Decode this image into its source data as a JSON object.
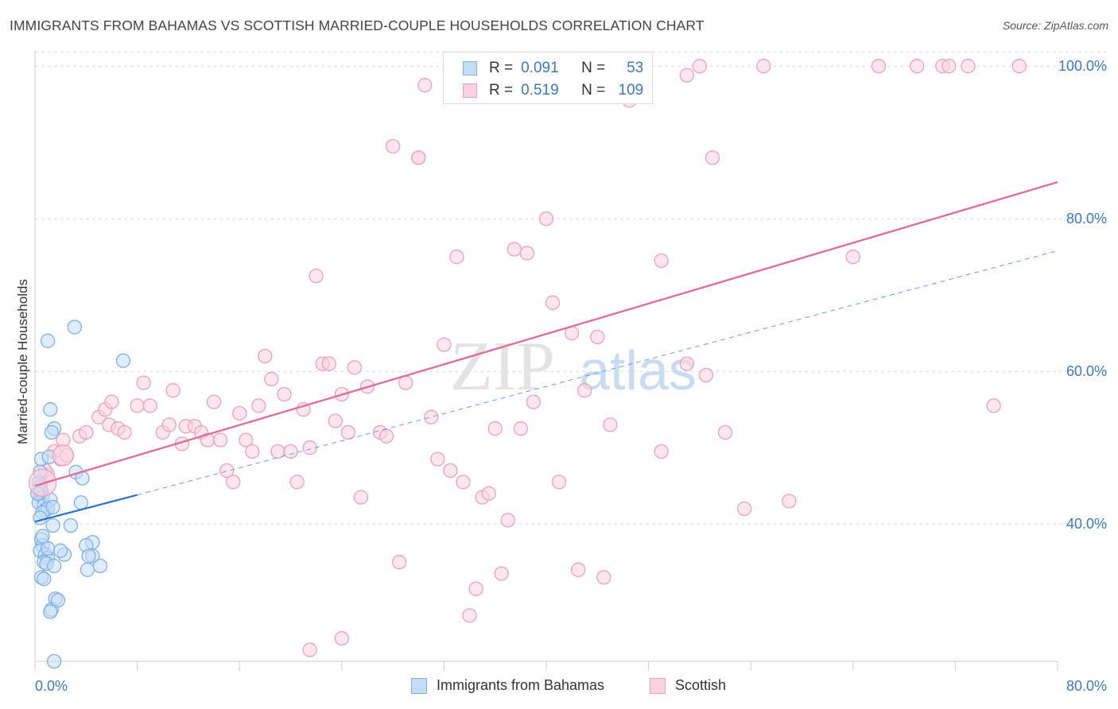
{
  "title": "IMMIGRANTS FROM BAHAMAS VS SCOTTISH MARRIED-COUPLE HOUSEHOLDS CORRELATION CHART",
  "source": "Source: ZipAtlas.com",
  "watermark": {
    "zip": "ZIP",
    "atlas": "atlas"
  },
  "legend": {
    "r_label": "R =",
    "n_label": "N =",
    "rows": [
      {
        "r": "0.091",
        "n": "53",
        "color": "#7fb0e8",
        "fill": "#c5dcf5"
      },
      {
        "r": "0.519",
        "n": "109",
        "color": "#f0a0b8",
        "fill": "#fbd3df"
      }
    ]
  },
  "bottom_legend": [
    {
      "label": "Immigrants from Bahamas",
      "color": "#7fb0e8",
      "fill": "#c5dcf5"
    },
    {
      "label": "Scottish",
      "color": "#f0a0b8",
      "fill": "#fbd3df"
    }
  ],
  "chart_data": {
    "type": "scatter",
    "title": "IMMIGRANTS FROM BAHAMAS VS SCOTTISH MARRIED-COUPLE HOUSEHOLDS CORRELATION CHART",
    "xlabel": "",
    "ylabel": "Married-couple Households",
    "xlim": [
      0,
      80
    ],
    "ylim": [
      22,
      102
    ],
    "x_tick_labels": [
      "0.0%",
      "80.0%"
    ],
    "y_ticks": [
      40,
      60,
      80,
      100
    ],
    "y_tick_labels": [
      "40.0%",
      "60.0%",
      "80.0%",
      "100.0%"
    ],
    "grid": "dashed horizontal",
    "legend_position": "top-center",
    "series": [
      {
        "name": "Immigrants from Bahamas",
        "color": "#7fb0e8",
        "fill": "#c5dcf5",
        "line_color": "#2a6fd0",
        "trend": {
          "x0": 0,
          "y0": 40.3,
          "x1": 8,
          "y1": 43.8,
          "dash_to_x": 80,
          "dash_to_y": 75.8
        },
        "points": [
          [
            0.3,
            45.4
          ],
          [
            0.4,
            44.8
          ],
          [
            0.4,
            43.8
          ],
          [
            0.5,
            44.2
          ],
          [
            0.6,
            43.5
          ],
          [
            0.3,
            42.8
          ],
          [
            0.7,
            42.4
          ],
          [
            0.8,
            41.8
          ],
          [
            0.5,
            48.5
          ],
          [
            0.4,
            46.8
          ],
          [
            1.1,
            48.8
          ],
          [
            1.2,
            43.2
          ],
          [
            1.0,
            42.0
          ],
          [
            0.6,
            41.5
          ],
          [
            0.4,
            40.8
          ],
          [
            0.5,
            38.0
          ],
          [
            0.6,
            37.2
          ],
          [
            0.4,
            36.5
          ],
          [
            0.8,
            36.0
          ],
          [
            1.0,
            35.5
          ],
          [
            0.7,
            35.0
          ],
          [
            0.9,
            34.8
          ],
          [
            1.5,
            34.5
          ],
          [
            0.5,
            33.0
          ],
          [
            0.7,
            32.8
          ],
          [
            1.6,
            30.2
          ],
          [
            1.3,
            28.8
          ],
          [
            1.2,
            28.5
          ],
          [
            1.5,
            22.0
          ],
          [
            1.0,
            36.8
          ],
          [
            1.4,
            39.8
          ],
          [
            0.6,
            38.4
          ],
          [
            1.5,
            52.5
          ],
          [
            1.2,
            55.0
          ],
          [
            1.0,
            64.0
          ],
          [
            3.1,
            65.8
          ],
          [
            1.3,
            52.0
          ],
          [
            2.8,
            39.8
          ],
          [
            2.3,
            36.0
          ],
          [
            3.2,
            46.8
          ],
          [
            3.7,
            46.0
          ],
          [
            4.5,
            37.6
          ],
          [
            4.0,
            37.2
          ],
          [
            4.5,
            35.8
          ],
          [
            4.2,
            35.8
          ],
          [
            5.1,
            34.5
          ],
          [
            4.1,
            34.0
          ],
          [
            1.8,
            30.0
          ],
          [
            6.9,
            61.4
          ],
          [
            3.6,
            42.8
          ],
          [
            2.0,
            36.5
          ],
          [
            0.2,
            44.0
          ],
          [
            1.4,
            42.2
          ]
        ]
      },
      {
        "name": "Scottish",
        "color": "#f0a0b8",
        "fill": "#fbd3df",
        "line_color": "#e0709a",
        "trend": {
          "x0": 0,
          "y0": 45.0,
          "x1": 80,
          "y1": 84.8
        },
        "points": [
          [
            0.5,
            45.5
          ],
          [
            1.0,
            46.5
          ],
          [
            2.0,
            48.5
          ],
          [
            2.5,
            49.0
          ],
          [
            3.5,
            51.5
          ],
          [
            4.0,
            52.0
          ],
          [
            5.0,
            54.0
          ],
          [
            5.5,
            55.0
          ],
          [
            6.0,
            56.0
          ],
          [
            5.8,
            53.0
          ],
          [
            6.5,
            52.5
          ],
          [
            7.0,
            52.0
          ],
          [
            8.0,
            55.5
          ],
          [
            8.5,
            58.5
          ],
          [
            9.0,
            55.5
          ],
          [
            10.0,
            52.0
          ],
          [
            10.5,
            53.0
          ],
          [
            10.8,
            57.5
          ],
          [
            11.5,
            50.5
          ],
          [
            11.8,
            52.8
          ],
          [
            12.5,
            52.8
          ],
          [
            13.0,
            52.0
          ],
          [
            13.5,
            51.0
          ],
          [
            14.0,
            56.0
          ],
          [
            14.5,
            51.0
          ],
          [
            15.0,
            47.0
          ],
          [
            15.5,
            45.5
          ],
          [
            16.0,
            54.5
          ],
          [
            16.5,
            51.0
          ],
          [
            17.0,
            49.5
          ],
          [
            17.5,
            55.5
          ],
          [
            18.0,
            62.0
          ],
          [
            18.5,
            59.0
          ],
          [
            19.0,
            49.5
          ],
          [
            19.5,
            57.0
          ],
          [
            20.0,
            49.5
          ],
          [
            20.5,
            45.5
          ],
          [
            21.0,
            55.0
          ],
          [
            21.5,
            50.0
          ],
          [
            22.0,
            72.5
          ],
          [
            22.5,
            61.0
          ],
          [
            23.0,
            61.0
          ],
          [
            23.5,
            53.5
          ],
          [
            24.0,
            57.0
          ],
          [
            24.5,
            52.0
          ],
          [
            25.0,
            60.5
          ],
          [
            25.5,
            43.5
          ],
          [
            26.0,
            58.0
          ],
          [
            27.0,
            52.0
          ],
          [
            27.5,
            51.5
          ],
          [
            28.0,
            89.5
          ],
          [
            28.5,
            35.0
          ],
          [
            29.0,
            58.5
          ],
          [
            30.0,
            88.0
          ],
          [
            30.5,
            97.5
          ],
          [
            31.0,
            54.0
          ],
          [
            31.5,
            48.5
          ],
          [
            32.0,
            63.5
          ],
          [
            32.5,
            47.0
          ],
          [
            33.0,
            75.0
          ],
          [
            33.5,
            45.5
          ],
          [
            34.0,
            28.0
          ],
          [
            34.5,
            31.5
          ],
          [
            35.0,
            43.5
          ],
          [
            35.5,
            44.0
          ],
          [
            36.0,
            52.5
          ],
          [
            36.5,
            33.5
          ],
          [
            37.0,
            40.5
          ],
          [
            37.5,
            76.0
          ],
          [
            38.0,
            52.5
          ],
          [
            38.5,
            75.5
          ],
          [
            39.0,
            56.0
          ],
          [
            40.0,
            80.0
          ],
          [
            40.5,
            69.0
          ],
          [
            41.0,
            45.5
          ],
          [
            42.0,
            65.0
          ],
          [
            42.5,
            34.0
          ],
          [
            43.0,
            57.5
          ],
          [
            44.0,
            64.5
          ],
          [
            44.5,
            33.0
          ],
          [
            45.0,
            53.0
          ],
          [
            46.0,
            100.0
          ],
          [
            46.5,
            95.5
          ],
          [
            47.5,
            100.0
          ],
          [
            49.0,
            74.5
          ],
          [
            49.0,
            49.5
          ],
          [
            51.0,
            98.8
          ],
          [
            51.0,
            61.0
          ],
          [
            52.0,
            100.0
          ],
          [
            52.5,
            59.5
          ],
          [
            53.0,
            88.0
          ],
          [
            54.0,
            52.0
          ],
          [
            55.5,
            42.0
          ],
          [
            57.0,
            100.0
          ],
          [
            59.0,
            43.0
          ],
          [
            64.0,
            75.0
          ],
          [
            66.0,
            100.0
          ],
          [
            69.0,
            100.0
          ],
          [
            71.0,
            100.0
          ],
          [
            71.5,
            100.0
          ],
          [
            73.0,
            100.0
          ],
          [
            75.0,
            55.5
          ],
          [
            77.0,
            100.0
          ],
          [
            30.0,
            88.0
          ],
          [
            21.5,
            23.5
          ],
          [
            24.0,
            25.0
          ],
          [
            0.8,
            47.0
          ],
          [
            1.5,
            49.5
          ],
          [
            2.2,
            51.0
          ]
        ]
      }
    ]
  }
}
